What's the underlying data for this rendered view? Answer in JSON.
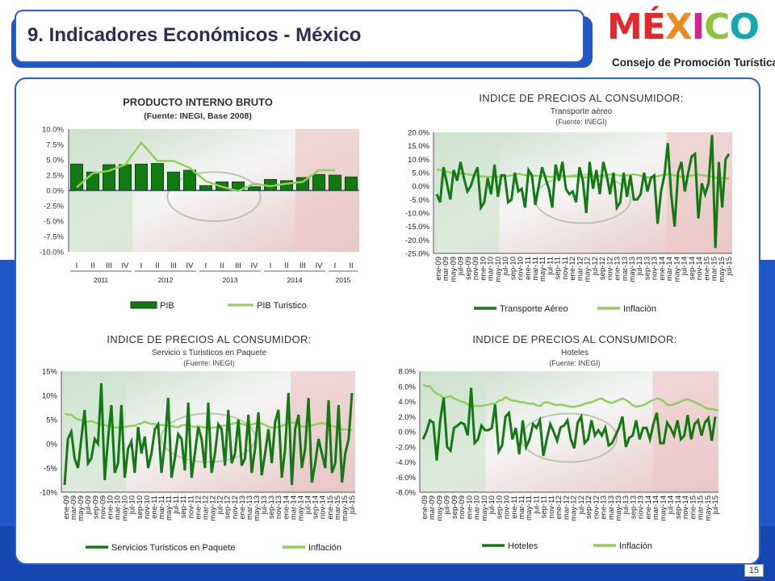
{
  "page": {
    "title": "9. Indicadores Económicos  - México",
    "logo_word": [
      "M",
      "É",
      "X",
      "I",
      "C",
      "O"
    ],
    "logo_colors": [
      "#e8262a",
      "#e8262a",
      "#f08a1c",
      "#e0208a",
      "#8cc63f",
      "#12a8b0"
    ],
    "logo_subtitle": "Consejo de Promoción Turística",
    "page_number": "15"
  },
  "chart_data": [
    {
      "type": "bar",
      "title": "PRODUCTO INTERNO BRUTO",
      "subtitle": "(Fuente: INEGI, Base 2008)",
      "categories": [
        "I",
        "II",
        "III",
        "IV",
        "I",
        "II",
        "III",
        "IV",
        "I",
        "II",
        "III",
        "IV",
        "I",
        "II",
        "III",
        "IV",
        "I",
        "II"
      ],
      "year_groups": [
        {
          "label": "2011",
          "count": 4
        },
        {
          "label": "2012",
          "count": 4
        },
        {
          "label": "2013",
          "count": 4
        },
        {
          "label": "2014",
          "count": 4
        },
        {
          "label": "2015",
          "count": 2
        }
      ],
      "series": [
        {
          "name": "PIB",
          "kind": "bar",
          "color": "#127a12",
          "values": [
            4.3,
            3.0,
            4.2,
            4.2,
            4.3,
            4.4,
            3.0,
            3.3,
            0.8,
            1.4,
            1.4,
            0.6,
            1.8,
            1.6,
            2.1,
            2.6,
            2.5,
            2.2
          ]
        },
        {
          "name": "PIB Turistico",
          "kind": "line",
          "color": "#8fd05a",
          "values": [
            0.5,
            2.8,
            3.2,
            4.2,
            7.8,
            4.8,
            4.8,
            3.7,
            1.5,
            0.6,
            -0.1,
            1.1,
            0.7,
            1.1,
            1.4,
            3.3,
            3.3,
            null
          ]
        }
      ],
      "yticks": [
        "10.0%",
        "7.5%",
        "5.0%",
        "2.5%",
        "0.0%",
        "-2.5%",
        "-5.0%",
        "-7.5%",
        "-10.0%"
      ],
      "ylim": [
        -10,
        10
      ],
      "legend": "bottom"
    },
    {
      "type": "line",
      "title": "INDICE DE PRECIOS AL CONSUMIDOR:",
      "subtitle": "Transporte aéreo",
      "source": "(Fuente: INEGI)",
      "x_labels": [
        "ene-09",
        "mar-09",
        "may-09",
        "jul-09",
        "sep-09",
        "nov-09",
        "ene-10",
        "mar-10",
        "may-10",
        "jul-10",
        "sep-10",
        "nov-10",
        "ene-11",
        "mar-11",
        "may-11",
        "jul-11",
        "sep-11",
        "nov-11",
        "ene-12",
        "mar-12",
        "may-12",
        "jul-12",
        "sep-12",
        "nov-12",
        "ene-13",
        "mar-13",
        "may-13",
        "jul-13",
        "sep-13",
        "nov-13",
        "ene-14",
        "mar-14",
        "may-14",
        "jul-14",
        "sep-14",
        "nov-14",
        "ene-15",
        "mar-15",
        "may-15",
        "jul-15"
      ],
      "series": [
        {
          "name": "Transporte Aéreo",
          "color": "#127a12",
          "values": [
            -3,
            -6,
            7,
            1,
            -5,
            6,
            2,
            9,
            3,
            -2,
            0,
            4,
            7,
            -8,
            -6,
            3,
            -3,
            8,
            -4,
            4,
            4,
            -6,
            -5,
            5,
            -2,
            -1,
            -8,
            6,
            4,
            -7,
            0,
            7,
            3,
            -1,
            -8,
            8,
            2,
            9,
            -1,
            -3,
            -2,
            -6,
            7,
            2,
            -10,
            9,
            -1,
            6,
            -3,
            9,
            4,
            -3,
            5,
            -8,
            -6,
            5,
            -4,
            4,
            -5,
            -5,
            -3,
            5,
            -2,
            3,
            4,
            -14,
            -2,
            4,
            16,
            -3,
            -15,
            5,
            9,
            -2,
            5,
            11,
            12,
            -12,
            1,
            -3,
            1,
            19,
            -23,
            9,
            -8,
            10,
            12
          ]
        },
        {
          "name": "Inflación",
          "color": "#8fd05a",
          "values": [
            6.2,
            6.0,
            6.0,
            5.4,
            5.0,
            4.9,
            4.4,
            4.6,
            4.7,
            4.4,
            4.2,
            4.0,
            3.9,
            3.6,
            3.6,
            3.4,
            3.4,
            3.4,
            3.5,
            3.6,
            3.7,
            3.7,
            4.1,
            4.2,
            4.6,
            4.3,
            4.1,
            4.1,
            3.9,
            3.9,
            3.8,
            3.7,
            3.7,
            3.5,
            3.4,
            3.8,
            3.9,
            3.8,
            3.6,
            3.5,
            3.6,
            3.5,
            3.4,
            3.3,
            3.3,
            3.4,
            3.5,
            3.7,
            3.8,
            3.9,
            4.1,
            4.3,
            4.4,
            4.1,
            3.9,
            3.8,
            4.0,
            4.2,
            4.4,
            4.2,
            3.9,
            3.5,
            3.3,
            3.4,
            3.5,
            3.7,
            4.0,
            4.2,
            4.4,
            4.3,
            4.0,
            3.6,
            3.5,
            3.6,
            3.8,
            4.0,
            4.2,
            4.3,
            4.1,
            3.9,
            3.7,
            3.5,
            3.2,
            3.0,
            3.0,
            2.9,
            2.8
          ]
        }
      ],
      "yticks": [
        "20.0%",
        "15.0%",
        "10.0%",
        "5.0%",
        "0.0%",
        "-5.0%",
        "-10.0%",
        "-15.0%",
        "-20.0%",
        "-25.0%"
      ],
      "ylim": [
        -25,
        20
      ],
      "legend": "bottom"
    },
    {
      "type": "line",
      "title": "INDICE DE PRECIOS AL CONSUMIDOR:",
      "subtitle": "Servicio s Turisticos en Paquete",
      "source": "(Fuente: INEGI)",
      "x_labels": [
        "ene-09",
        "mar-09",
        "may-09",
        "jul-09",
        "sep-09",
        "nov-09",
        "ene-10",
        "mar-10",
        "may-10",
        "jul-10",
        "sep-10",
        "nov-10",
        "ene-11",
        "mar-11",
        "may-11",
        "jul-11",
        "sep-11",
        "nov-11",
        "ene-12",
        "mar-12",
        "may-12",
        "jul-12",
        "sep-12",
        "nov-12",
        "ene-13",
        "mar-13",
        "may-13",
        "jul-13",
        "sep-13",
        "nov-13",
        "ene-14",
        "mar-14",
        "may-14",
        "jul-14",
        "sep-14",
        "nov-14",
        "ene-15",
        "mar-15",
        "may-15",
        "jul-15"
      ],
      "series": [
        {
          "name": "Servicios Turisticos en Paquete",
          "color": "#127a12",
          "values": [
            -8.5,
            1,
            2.5,
            -3,
            -5,
            1,
            7,
            -4,
            -3,
            1,
            0,
            12.5,
            -7.5,
            1,
            8,
            -6,
            -4,
            8,
            -7,
            -1,
            0.5,
            -6,
            3.5,
            -2,
            1.5,
            -5,
            -2,
            3,
            4,
            -6,
            0,
            9.5,
            -7,
            -3,
            2,
            1,
            -5.5,
            8.5,
            -7,
            -2,
            3.5,
            1,
            -5,
            8.5,
            -6,
            -2,
            4,
            3,
            -4.5,
            7,
            -4,
            -2,
            5,
            -4.5,
            -3,
            6,
            -6,
            -1,
            6.5,
            -6.5,
            -2,
            3,
            -4,
            4.5,
            7,
            -7,
            -1,
            10.5,
            -8.5,
            3,
            6,
            -5,
            -1,
            9.5,
            -8,
            -4,
            1,
            -2,
            -5,
            9,
            -6,
            -4,
            8,
            -8,
            -2,
            1,
            10.5
          ]
        },
        {
          "name": "Inflación",
          "color": "#8fd05a",
          "values": [
            6.2,
            6.0,
            6.0,
            5.4,
            5.0,
            4.9,
            4.4,
            4.6,
            4.7,
            4.4,
            4.2,
            4.0,
            3.9,
            3.6,
            3.6,
            3.4,
            3.4,
            3.4,
            3.5,
            3.6,
            3.7,
            3.7,
            4.1,
            4.2,
            4.6,
            4.3,
            4.1,
            4.1,
            3.9,
            3.9,
            3.8,
            3.7,
            3.7,
            3.5,
            3.4,
            3.8,
            3.9,
            3.8,
            3.6,
            3.5,
            3.6,
            3.5,
            3.4,
            3.3,
            3.3,
            3.4,
            3.5,
            3.7,
            3.8,
            3.9,
            4.1,
            4.3,
            4.4,
            4.1,
            3.9,
            3.8,
            4.0,
            4.2,
            4.4,
            4.2,
            3.9,
            3.5,
            3.3,
            3.4,
            3.5,
            3.7,
            4.0,
            4.2,
            4.4,
            4.3,
            4.0,
            3.6,
            3.5,
            3.6,
            3.8,
            4.0,
            4.2,
            4.3,
            4.1,
            3.9,
            3.7,
            3.5,
            3.2,
            3.0,
            3.0,
            2.9,
            2.8
          ]
        }
      ],
      "yticks": [
        "15%",
        "10%",
        "5%",
        "0%",
        "-5%",
        "-10%"
      ],
      "ylim": [
        -10,
        15
      ],
      "legend": "bottom"
    },
    {
      "type": "line",
      "title": "INDICE DE PRECIOS AL CONSUMIDOR:",
      "subtitle": "Hoteles",
      "source": "(Fuente: INEGI)",
      "x_labels": [
        "ene-09",
        "mar-09",
        "may-09",
        "jul-09",
        "sep-09",
        "nov-09",
        "ene-10",
        "mar-10",
        "may-10",
        "jul-10",
        "sep-10",
        "nov-10",
        "ene-11",
        "mar-11",
        "may-11",
        "jul-11",
        "sep-11",
        "nov-11",
        "ene-12",
        "mar-12",
        "may-12",
        "jul-12",
        "sep-12",
        "nov-12",
        "ene-13",
        "mar-13",
        "may-13",
        "jul-13",
        "sep-13",
        "nov-13",
        "ene-14",
        "mar-14",
        "may-14",
        "jul-14",
        "sep-14",
        "nov-14",
        "ene-15",
        "mar-15",
        "may-15",
        "jul-15"
      ],
      "series": [
        {
          "name": "Hoteles",
          "color": "#127a12",
          "values": [
            -1,
            0,
            1.5,
            1.2,
            -3.8,
            1.5,
            4.5,
            -2,
            -2.5,
            0.5,
            0.8,
            1.2,
            1,
            -0.5,
            5.8,
            -1.5,
            -1,
            0.8,
            0.2,
            0.2,
            0.5,
            3.6,
            -2.6,
            -1.8,
            2,
            2.5,
            -1,
            0.5,
            -3,
            1.5,
            -2,
            -1,
            1,
            0.5,
            1.5,
            -3.2,
            -1,
            1,
            0,
            -1.2,
            0.6,
            0.8,
            1.5,
            -1,
            -2.2,
            1.2,
            2,
            -1.5,
            -1,
            1.5,
            -0.5,
            0.2,
            -0.5,
            0.5,
            -1.8,
            -1.5,
            -0.5,
            0.5,
            2,
            -2,
            -0.8,
            -0.5,
            1.5,
            -1,
            0.5,
            0.5,
            -1,
            1,
            2.5,
            -1.5,
            -1.5,
            1.2,
            0.5,
            -0.5,
            1.5,
            -1,
            -0.5,
            2.2,
            -1,
            1,
            1.5,
            -0.5,
            1.2,
            1.8,
            -1.2,
            2
          ]
        },
        {
          "name": "Inflación",
          "color": "#8fd05a",
          "values": [
            6.2,
            6.0,
            6.0,
            5.4,
            5.0,
            4.9,
            4.4,
            4.6,
            4.7,
            4.4,
            4.2,
            4.0,
            3.9,
            3.6,
            3.6,
            3.4,
            3.4,
            3.4,
            3.5,
            3.6,
            3.7,
            3.7,
            4.1,
            4.2,
            4.6,
            4.3,
            4.1,
            4.1,
            3.9,
            3.9,
            3.8,
            3.7,
            3.7,
            3.5,
            3.4,
            3.8,
            3.9,
            3.8,
            3.6,
            3.5,
            3.6,
            3.5,
            3.4,
            3.3,
            3.3,
            3.4,
            3.5,
            3.7,
            3.8,
            3.9,
            4.1,
            4.3,
            4.4,
            4.1,
            3.9,
            3.8,
            4.0,
            4.2,
            4.4,
            4.2,
            3.9,
            3.5,
            3.3,
            3.4,
            3.5,
            3.7,
            4.0,
            4.2,
            4.4,
            4.3,
            4.0,
            3.6,
            3.5,
            3.6,
            3.8,
            4.0,
            4.2,
            4.3,
            4.1,
            3.9,
            3.7,
            3.5,
            3.2,
            3.0,
            3.0,
            2.9,
            2.8
          ]
        }
      ],
      "yticks": [
        "8.0%",
        "6.0%",
        "4.0%",
        "2.0%",
        "0.0%",
        "-2.0%",
        "-4.0%",
        "-6.0%",
        "-8.0%"
      ],
      "ylim": [
        -8,
        8
      ],
      "legend": "bottom"
    }
  ]
}
